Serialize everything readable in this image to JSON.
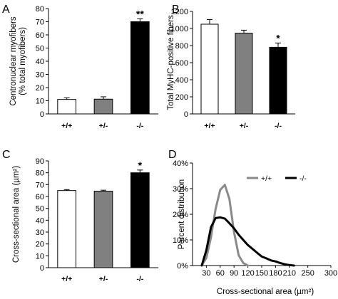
{
  "chart_data": [
    {
      "panel": "A",
      "type": "bar",
      "categories": [
        "+/+",
        "+/-",
        "-/-"
      ],
      "values": [
        11,
        11.2,
        70
      ],
      "errors": [
        1.2,
        1.8,
        2.2
      ],
      "annotations": [
        "",
        "",
        "**"
      ],
      "bar_colors": [
        "#ffffff",
        "#808080",
        "#000000"
      ],
      "ylabel_lines": [
        "Centronuclear  myofibers",
        "(% total myofibers)"
      ],
      "ylim": [
        0,
        80
      ],
      "yticks": [
        0,
        10,
        20,
        30,
        40,
        50,
        60,
        70,
        80
      ]
    },
    {
      "panel": "B",
      "type": "bar",
      "categories": [
        "+/+",
        "+/-",
        "-/-"
      ],
      "values": [
        1050,
        945,
        780
      ],
      "errors": [
        55,
        35,
        50
      ],
      "annotations": [
        "",
        "",
        "*"
      ],
      "bar_colors": [
        "#ffffff",
        "#808080",
        "#000000"
      ],
      "ylabel_lines": [
        "Total MyHC-positive fibers"
      ],
      "ylim": [
        0,
        1200
      ],
      "yticks": [
        0,
        200,
        400,
        600,
        800,
        1000,
        1200
      ]
    },
    {
      "panel": "C",
      "type": "bar",
      "categories": [
        "+/+",
        "+/-",
        "-/-"
      ],
      "values": [
        65,
        64.5,
        80
      ],
      "errors": [
        0.8,
        0.8,
        2.3
      ],
      "annotations": [
        "",
        "",
        "*"
      ],
      "bar_colors": [
        "#ffffff",
        "#808080",
        "#000000"
      ],
      "ylabel_lines": [
        "Cross-sectional area (µm²)"
      ],
      "ylim": [
        0,
        90
      ],
      "yticks": [
        0,
        10,
        20,
        30,
        40,
        50,
        60,
        70,
        80,
        90
      ]
    },
    {
      "panel": "D",
      "type": "line",
      "xlabel": "Cross-sectional area (µm²)",
      "ylabel_lines": [
        "Percent distribution"
      ],
      "xlim": [
        0,
        300
      ],
      "xticks": [
        30,
        60,
        90,
        120,
        150,
        180,
        210,
        250,
        300
      ],
      "ylim": [
        0,
        40
      ],
      "yticks": [
        "0%",
        "10%",
        "20%",
        "30%",
        "40%"
      ],
      "ytick_values": [
        0,
        10,
        20,
        30,
        40
      ],
      "legend_position": "top-right",
      "series": [
        {
          "name": "+/+",
          "color": "#8a8a8a",
          "x": [
            20,
            30,
            40,
            50,
            60,
            70,
            80,
            90,
            100,
            110,
            120
          ],
          "y": [
            0,
            3,
            11,
            22,
            29.5,
            31.5,
            26,
            13,
            4,
            1,
            0
          ]
        },
        {
          "name": "-/-",
          "color": "#000000",
          "x": [
            20,
            30,
            40,
            50,
            60,
            70,
            80,
            90,
            100,
            110,
            120,
            130,
            140,
            150,
            160,
            170,
            180,
            190,
            200,
            210,
            220
          ],
          "y": [
            0,
            6,
            15,
            18.5,
            18.8,
            18.3,
            16.5,
            14.5,
            12,
            10,
            8,
            6.5,
            5,
            3.5,
            2.8,
            2,
            1.6,
            1,
            0.5,
            0.2,
            0
          ]
        }
      ]
    }
  ]
}
